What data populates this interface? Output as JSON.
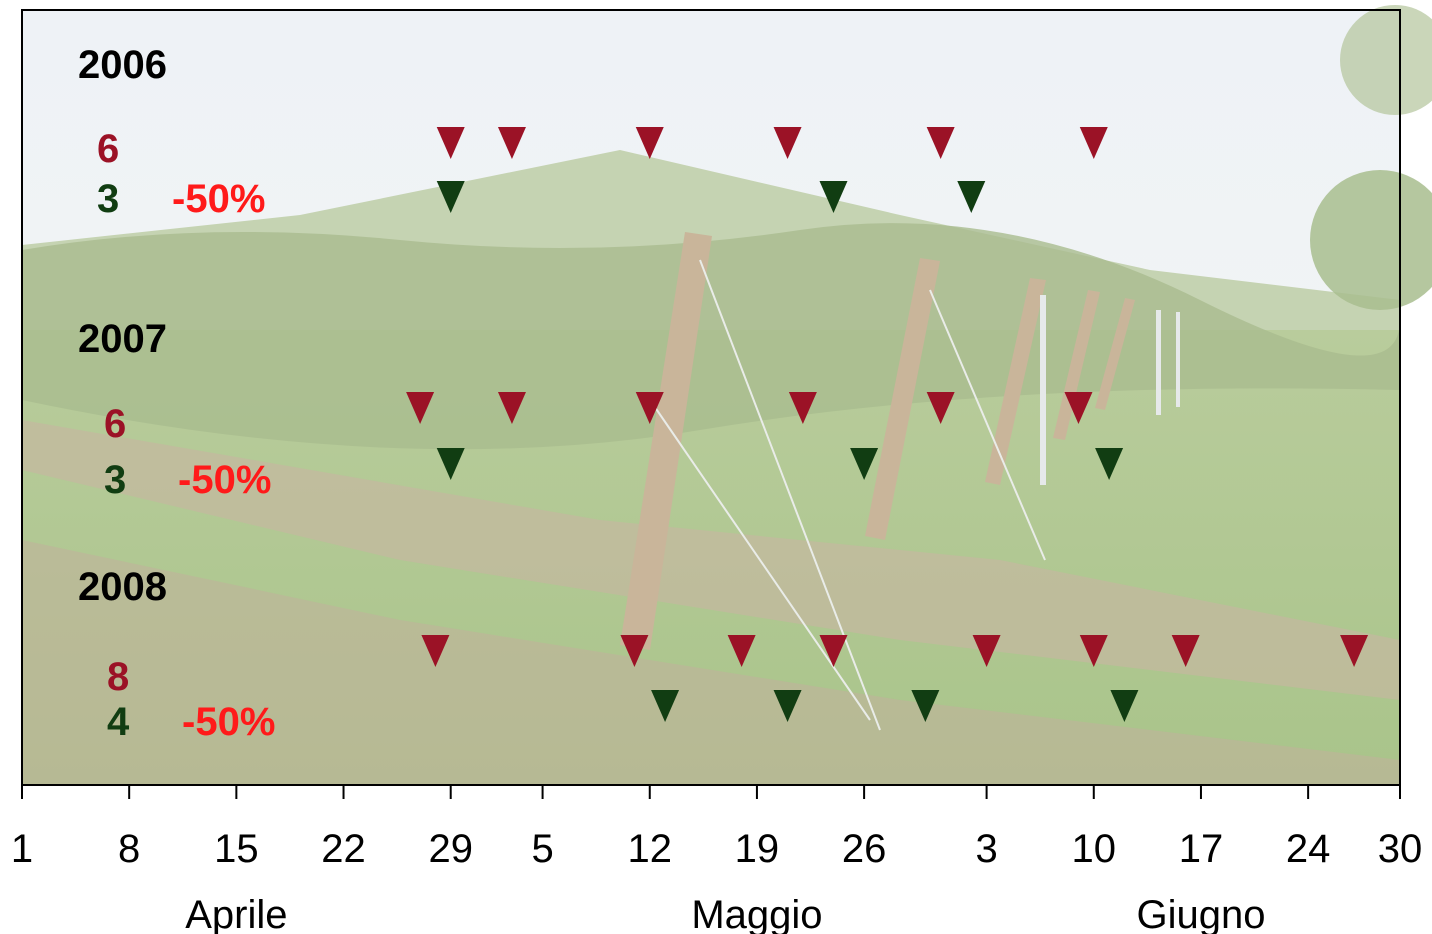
{
  "colors": {
    "full_schedule": "#9b1226",
    "reduced_schedule": "#113d12",
    "reduction_text": "#ff1a1a",
    "axis": "#000000"
  },
  "background": "vineyard-photo",
  "chart_data": {
    "type": "scatter",
    "marker": "down-triangle",
    "x_unit": "date",
    "xlim": [
      "04-01",
      "06-30"
    ],
    "tick_labels": [
      "1",
      "8",
      "15",
      "22",
      "29",
      "5",
      "12",
      "19",
      "26",
      "3",
      "10",
      "17",
      "24",
      "30"
    ],
    "tick_dates": [
      "04-01",
      "04-08",
      "04-15",
      "04-22",
      "04-29",
      "05-05",
      "05-12",
      "05-19",
      "05-26",
      "06-03",
      "06-10",
      "06-17",
      "06-24",
      "06-30"
    ],
    "months": [
      {
        "label": "Aprile",
        "date": "04-15"
      },
      {
        "label": "Maggio",
        "date": "05-19"
      },
      {
        "label": "Giugno",
        "date": "06-17"
      }
    ],
    "years": [
      {
        "year": "2006",
        "full_count": "6",
        "reduced_count": "3",
        "reduction": "-50%",
        "full_dates": [
          "04-29",
          "05-03",
          "05-12",
          "05-21",
          "05-31",
          "06-10"
        ],
        "reduced_dates": [
          "04-29",
          "05-24",
          "06-02"
        ]
      },
      {
        "year": "2007",
        "full_count": "6",
        "reduced_count": "3",
        "reduction": "-50%",
        "full_dates": [
          "04-27",
          "05-03",
          "05-12",
          "05-22",
          "05-31",
          "06-09"
        ],
        "reduced_dates": [
          "04-29",
          "05-26",
          "06-11"
        ]
      },
      {
        "year": "2008",
        "full_count": "8",
        "reduced_count": "4",
        "reduction": "-50%",
        "full_dates": [
          "04-28",
          "05-11",
          "05-18",
          "05-24",
          "06-03",
          "06-10",
          "06-16",
          "06-27"
        ],
        "reduced_dates": [
          "05-13",
          "05-21",
          "05-30",
          "06-12"
        ]
      }
    ]
  }
}
